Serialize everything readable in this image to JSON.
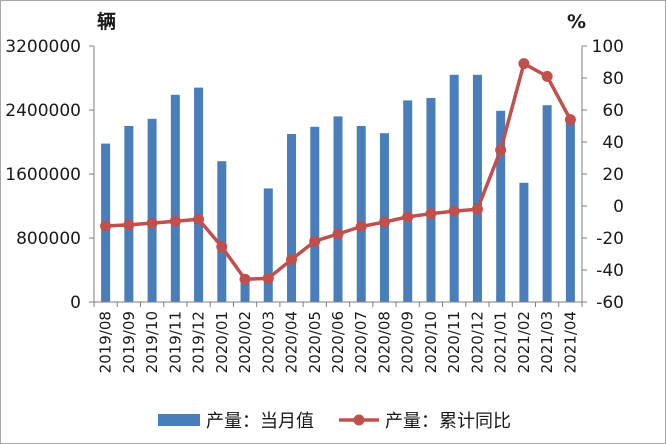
{
  "chart_data": {
    "type": "bar+line",
    "categories": [
      "2019/08",
      "2019/09",
      "2019/10",
      "2019/11",
      "2019/12",
      "2020/01",
      "2020/02",
      "2020/03",
      "2020/04",
      "2020/05",
      "2020/06",
      "2020/07",
      "2020/08",
      "2020/09",
      "2020/10",
      "2020/11",
      "2020/12",
      "2021/01",
      "2021/02",
      "2021/03",
      "2021/04"
    ],
    "left_axis": {
      "unit": "辆",
      "ylim": [
        0,
        3200000
      ],
      "ticks": [
        "0",
        "800000",
        "1600000",
        "2400000",
        "3200000"
      ]
    },
    "right_axis": {
      "unit": "%",
      "ylim": [
        -60,
        100
      ],
      "ticks": [
        "-60",
        "-40",
        "-20",
        "0",
        "20",
        "40",
        "60",
        "80",
        "100"
      ]
    },
    "series": [
      {
        "name": "产量：当月值",
        "type": "bar",
        "axis": "left",
        "color": "#4a7ebb",
        "values": [
          1980000,
          2200000,
          2290000,
          2590000,
          2680000,
          1760000,
          240000,
          1420000,
          2100000,
          2190000,
          2320000,
          2200000,
          2110000,
          2520000,
          2550000,
          2840000,
          2840000,
          2390000,
          1490000,
          2460000,
          2300000
        ]
      },
      {
        "name": "产量：累计同比",
        "type": "line",
        "axis": "right",
        "color": "#c0504d",
        "values": [
          -12.5,
          -11.8,
          -10.7,
          -9.5,
          -8.3,
          -25.5,
          -45.8,
          -45.2,
          -33.5,
          -22.0,
          -17.5,
          -12.8,
          -10.0,
          -6.8,
          -4.8,
          -3.2,
          -2.0,
          35.0,
          89.0,
          81.0,
          54.0
        ]
      }
    ],
    "grid": false,
    "legend_position": "bottom"
  }
}
